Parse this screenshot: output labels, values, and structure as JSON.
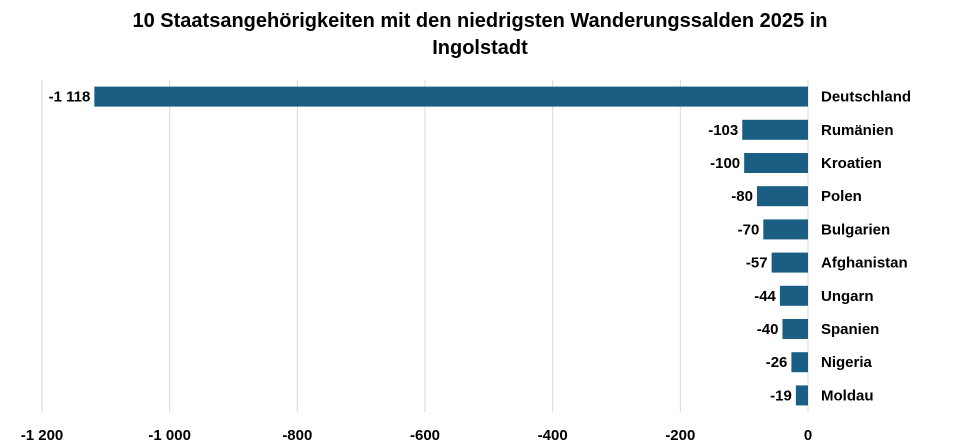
{
  "chart_data": {
    "type": "bar",
    "orientation": "horizontal",
    "title_lines": [
      "10 Staatsangehörigkeiten mit den niedrigsten Wanderungssalden 2025 in",
      "Ingolstadt"
    ],
    "xlabel": "",
    "ylabel": "",
    "categories": [
      "Deutschland",
      "Rumänien",
      "Kroatien",
      "Polen",
      "Bulgarien",
      "Afghanistan",
      "Ungarn",
      "Spanien",
      "Nigeria",
      "Moldau"
    ],
    "values": [
      -1118,
      -103,
      -100,
      -80,
      -70,
      -57,
      -44,
      -40,
      -26,
      -19
    ],
    "value_labels": [
      "-1 118",
      "-103",
      "-100",
      "-80",
      "-70",
      "-57",
      "-44",
      "-40",
      "-26",
      "-19"
    ],
    "xlim": [
      -1200,
      0
    ],
    "xticks": [
      -1200,
      -1000,
      -800,
      -600,
      -400,
      -200,
      0
    ],
    "xtick_labels": [
      "-1 200",
      "-1 000",
      "-800",
      "-600",
      "-400",
      "-200",
      "0"
    ],
    "grid": "vertical",
    "bar_color": "#1a5e83",
    "grid_color": "#d9d9d9"
  }
}
